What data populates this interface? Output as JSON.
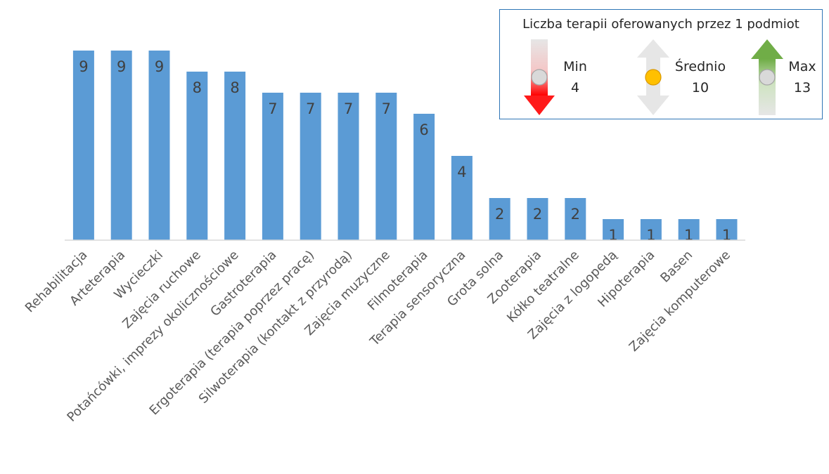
{
  "chart_data": {
    "type": "bar",
    "categories": [
      "Rehabilitacja",
      "Arteterapia",
      "Wycieczki",
      "Zajęcia ruchowe",
      "Potańcówki, imprezy okolicznościowe",
      "Gastroterapia",
      "Ergoterapia (terapia poprzez pracę)",
      "Silwoterapia (kontakt z przyrodą)",
      "Zajęcia muzyczne",
      "Filmoterapia",
      "Terapia sensoryczna",
      "Grota solna",
      "Zooterapia",
      "Kółko teatralne",
      "Zajęcia z logopedą",
      "Hipoterapia",
      "Basen",
      "Zajęcia komputerowe"
    ],
    "values": [
      9,
      9,
      9,
      8,
      8,
      7,
      7,
      7,
      7,
      6,
      4,
      2,
      2,
      2,
      1,
      1,
      1,
      1
    ],
    "ylim": [
      0,
      9
    ],
    "grid": false,
    "legend_placement": "top-right",
    "bar_color": "#5b9bd5"
  },
  "legend": {
    "title": "Liczba terapii oferowanych przez 1 podmiot",
    "min_label": "Min",
    "min_value": "4",
    "avg_label": "Średnio",
    "avg_value": "10",
    "max_label": "Max",
    "max_value": "13",
    "down_arrow_color": "#ff0000",
    "up_arrow_color": "#70ad47",
    "avg_dot_color": "#ffc000",
    "neutral_dot_color": "#d9d9d9"
  }
}
